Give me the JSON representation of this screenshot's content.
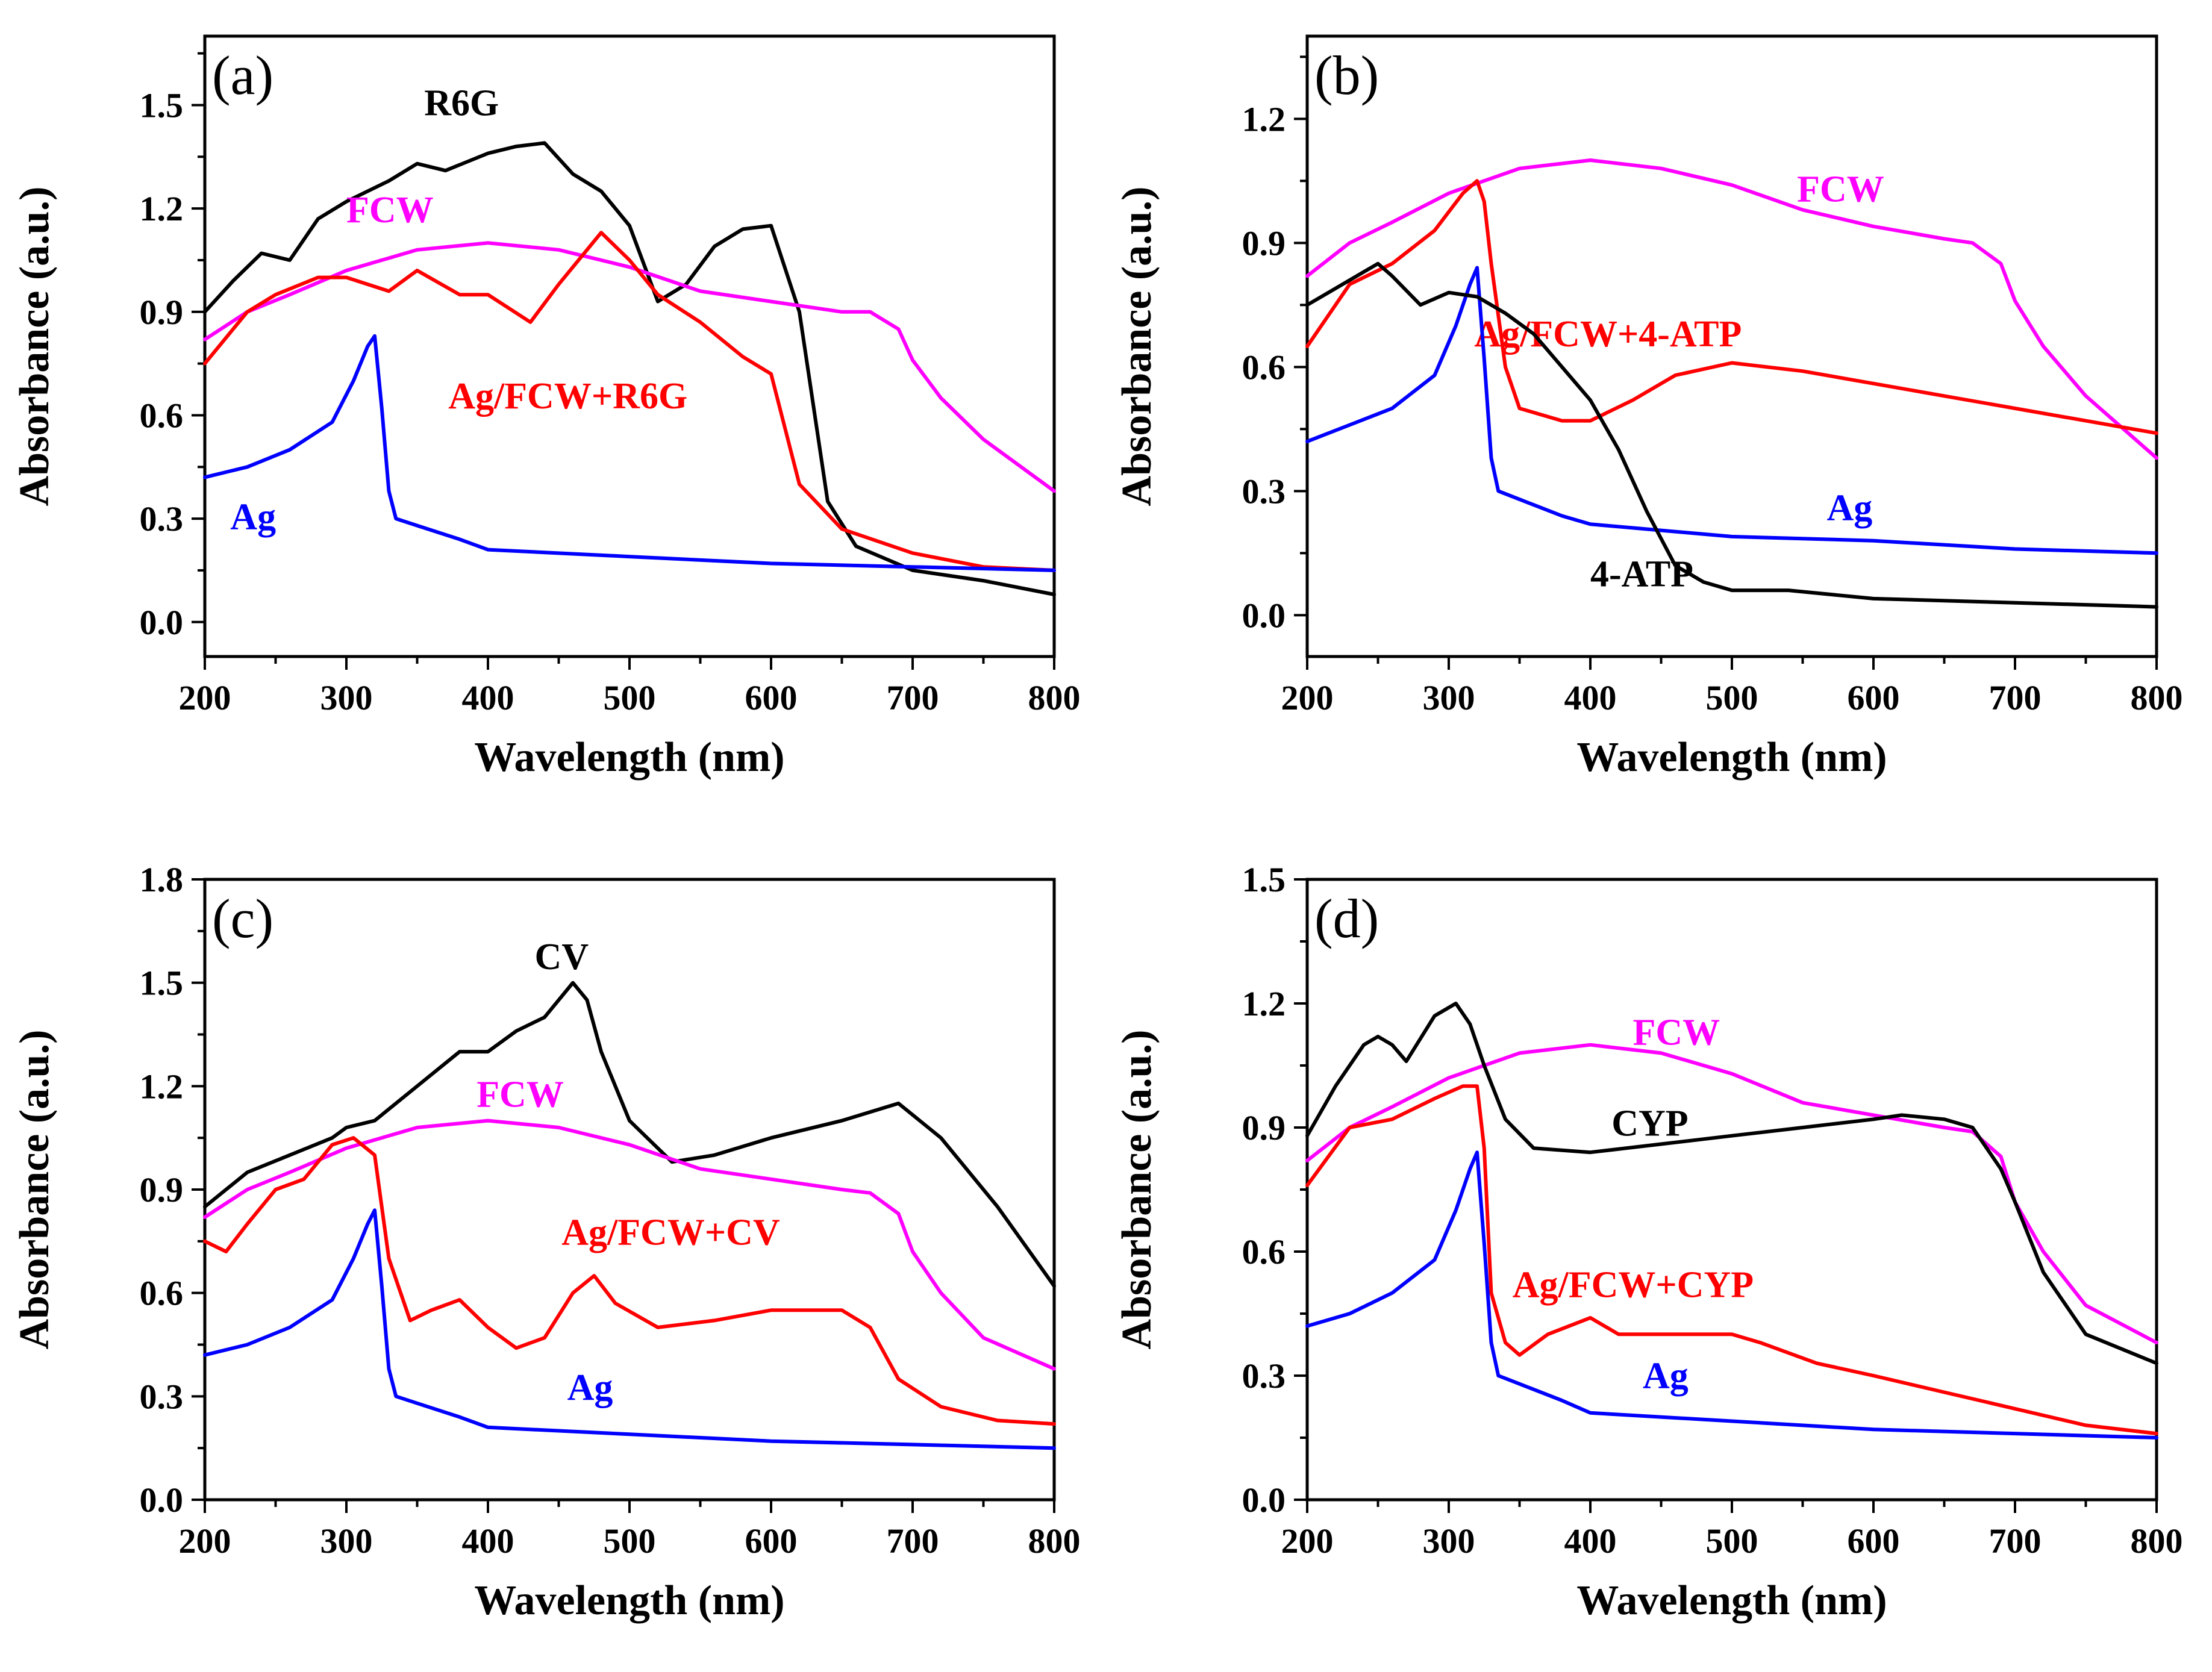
{
  "chart_data": [
    {
      "type": "line",
      "panel_label": "(a)",
      "xlabel": "Wavelength (nm)",
      "ylabel": "Absorbance (a.u.)",
      "xlim": [
        200,
        800
      ],
      "ylim": [
        -0.1,
        1.7
      ],
      "xticks": [
        200,
        300,
        400,
        500,
        600,
        700,
        800
      ],
      "xtick_labels": [
        "200",
        "300",
        "400",
        "500",
        "600",
        "700",
        "800"
      ],
      "yticks": [
        0.0,
        0.3,
        0.6,
        0.9,
        1.2,
        1.5
      ],
      "ytick_labels": [
        "0.0",
        "0.3",
        "0.6",
        "0.9",
        "1.2",
        "1.5"
      ],
      "series": [
        {
          "name": "R6G",
          "color": "#000000",
          "label_x": 355,
          "label_y": 1.47,
          "x": [
            200,
            220,
            240,
            260,
            280,
            300,
            330,
            350,
            370,
            400,
            420,
            440,
            460,
            480,
            500,
            520,
            540,
            560,
            580,
            600,
            620,
            640,
            660,
            700,
            750,
            800
          ],
          "y": [
            0.9,
            0.99,
            1.07,
            1.05,
            1.17,
            1.22,
            1.28,
            1.33,
            1.31,
            1.36,
            1.38,
            1.39,
            1.3,
            1.25,
            1.15,
            0.93,
            0.98,
            1.09,
            1.14,
            1.15,
            0.9,
            0.35,
            0.22,
            0.15,
            0.12,
            0.08
          ]
        },
        {
          "name": "FCW",
          "color": "#ff00ff",
          "label_x": 300,
          "label_y": 1.16,
          "x": [
            200,
            230,
            260,
            300,
            350,
            400,
            450,
            500,
            550,
            600,
            650,
            670,
            690,
            700,
            720,
            750,
            800
          ],
          "y": [
            0.82,
            0.9,
            0.95,
            1.02,
            1.08,
            1.1,
            1.08,
            1.03,
            0.96,
            0.93,
            0.9,
            0.9,
            0.85,
            0.76,
            0.65,
            0.53,
            0.38
          ]
        },
        {
          "name": "Ag/FCW+R6G",
          "color": "#ff0000",
          "label_x": 372,
          "label_y": 0.62,
          "x": [
            200,
            230,
            250,
            280,
            300,
            330,
            350,
            380,
            400,
            430,
            450,
            480,
            500,
            520,
            550,
            580,
            600,
            620,
            650,
            700,
            750,
            800
          ],
          "y": [
            0.75,
            0.9,
            0.95,
            1.0,
            1.0,
            0.96,
            1.02,
            0.95,
            0.95,
            0.87,
            0.98,
            1.13,
            1.05,
            0.95,
            0.87,
            0.77,
            0.72,
            0.4,
            0.27,
            0.2,
            0.16,
            0.15
          ]
        },
        {
          "name": "Ag",
          "color": "#0000ff",
          "label_x": 218,
          "label_y": 0.27,
          "x": [
            200,
            230,
            260,
            290,
            305,
            315,
            320,
            325,
            330,
            335,
            350,
            380,
            400,
            500,
            600,
            700,
            800
          ],
          "y": [
            0.42,
            0.45,
            0.5,
            0.58,
            0.7,
            0.8,
            0.83,
            0.62,
            0.38,
            0.3,
            0.28,
            0.24,
            0.21,
            0.19,
            0.17,
            0.16,
            0.15
          ]
        }
      ]
    },
    {
      "type": "line",
      "panel_label": "(b)",
      "xlabel": "Wavelength (nm)",
      "ylabel": "Absorbance (a.u.)",
      "xlim": [
        200,
        800
      ],
      "ylim": [
        -0.1,
        1.4
      ],
      "xticks": [
        200,
        300,
        400,
        500,
        600,
        700,
        800
      ],
      "xtick_labels": [
        "200",
        "300",
        "400",
        "500",
        "600",
        "700",
        "800"
      ],
      "yticks": [
        0.0,
        0.3,
        0.6,
        0.9,
        1.2
      ],
      "ytick_labels": [
        "0.0",
        "0.3",
        "0.6",
        "0.9",
        "1.2"
      ],
      "series": [
        {
          "name": "FCW",
          "color": "#ff00ff",
          "label_x": 546,
          "label_y": 1.0,
          "x": [
            200,
            230,
            260,
            300,
            350,
            400,
            450,
            500,
            550,
            600,
            650,
            670,
            690,
            700,
            720,
            750,
            800
          ],
          "y": [
            0.82,
            0.9,
            0.95,
            1.02,
            1.08,
            1.1,
            1.08,
            1.04,
            0.98,
            0.94,
            0.91,
            0.9,
            0.85,
            0.76,
            0.65,
            0.53,
            0.38
          ]
        },
        {
          "name": "Ag/FCW+4-ATP",
          "color": "#ff0000",
          "label_x": 318,
          "label_y": 0.65,
          "x": [
            200,
            230,
            260,
            290,
            310,
            320,
            325,
            330,
            340,
            350,
            380,
            400,
            430,
            460,
            500,
            550,
            600,
            650,
            700,
            750,
            800
          ],
          "y": [
            0.65,
            0.8,
            0.85,
            0.93,
            1.02,
            1.05,
            1.0,
            0.85,
            0.6,
            0.5,
            0.47,
            0.47,
            0.52,
            0.58,
            0.61,
            0.59,
            0.56,
            0.53,
            0.5,
            0.47,
            0.44
          ]
        },
        {
          "name": "Ag",
          "color": "#0000ff",
          "label_x": 567,
          "label_y": 0.23,
          "x": [
            200,
            230,
            260,
            290,
            305,
            315,
            320,
            325,
            330,
            335,
            350,
            380,
            400,
            500,
            600,
            700,
            800
          ],
          "y": [
            0.42,
            0.46,
            0.5,
            0.58,
            0.7,
            0.8,
            0.84,
            0.62,
            0.38,
            0.3,
            0.28,
            0.24,
            0.22,
            0.19,
            0.18,
            0.16,
            0.15
          ]
        },
        {
          "name": "4-ATP",
          "color": "#000000",
          "label_x": 400,
          "label_y": 0.07,
          "x": [
            200,
            220,
            240,
            250,
            260,
            280,
            300,
            320,
            340,
            360,
            380,
            400,
            420,
            440,
            460,
            480,
            500,
            540,
            600,
            700,
            800
          ],
          "y": [
            0.75,
            0.79,
            0.83,
            0.85,
            0.82,
            0.75,
            0.78,
            0.77,
            0.73,
            0.68,
            0.6,
            0.52,
            0.4,
            0.25,
            0.12,
            0.08,
            0.06,
            0.06,
            0.04,
            0.03,
            0.02
          ]
        }
      ]
    },
    {
      "type": "line",
      "panel_label": "(c)",
      "xlabel": "Wavelength (nm)",
      "ylabel": "Absorbance (a.u.)",
      "xlim": [
        200,
        800
      ],
      "ylim": [
        0.0,
        1.8
      ],
      "xticks": [
        200,
        300,
        400,
        500,
        600,
        700,
        800
      ],
      "xtick_labels": [
        "200",
        "300",
        "400",
        "500",
        "600",
        "700",
        "800"
      ],
      "yticks": [
        0.0,
        0.3,
        0.6,
        0.9,
        1.2,
        1.5,
        1.8
      ],
      "ytick_labels": [
        "0.0",
        "0.3",
        "0.6",
        "0.9",
        "1.2",
        "1.5",
        "1.8"
      ],
      "series": [
        {
          "name": "CV",
          "color": "#000000",
          "label_x": 433,
          "label_y": 1.54,
          "x": [
            200,
            230,
            260,
            290,
            300,
            320,
            350,
            380,
            400,
            420,
            440,
            460,
            470,
            480,
            500,
            530,
            560,
            600,
            650,
            690,
            720,
            760,
            800
          ],
          "y": [
            0.85,
            0.95,
            1.0,
            1.05,
            1.08,
            1.1,
            1.2,
            1.3,
            1.3,
            1.36,
            1.4,
            1.5,
            1.45,
            1.3,
            1.1,
            0.98,
            1.0,
            1.05,
            1.1,
            1.15,
            1.05,
            0.85,
            0.62
          ]
        },
        {
          "name": "FCW",
          "color": "#ff00ff",
          "label_x": 392,
          "label_y": 1.14,
          "x": [
            200,
            230,
            260,
            300,
            350,
            400,
            450,
            500,
            550,
            600,
            650,
            670,
            690,
            700,
            720,
            750,
            800
          ],
          "y": [
            0.82,
            0.9,
            0.95,
            1.02,
            1.08,
            1.1,
            1.08,
            1.03,
            0.96,
            0.93,
            0.9,
            0.89,
            0.83,
            0.72,
            0.6,
            0.47,
            0.38
          ]
        },
        {
          "name": "Ag/FCW+CV",
          "color": "#ff0000",
          "label_x": 452,
          "label_y": 0.74,
          "x": [
            200,
            215,
            230,
            250,
            270,
            290,
            305,
            320,
            330,
            345,
            360,
            380,
            400,
            420,
            440,
            460,
            475,
            490,
            520,
            560,
            600,
            650,
            670,
            690,
            720,
            760,
            800
          ],
          "y": [
            0.75,
            0.72,
            0.8,
            0.9,
            0.93,
            1.03,
            1.05,
            1.0,
            0.7,
            0.52,
            0.55,
            0.58,
            0.5,
            0.44,
            0.47,
            0.6,
            0.65,
            0.57,
            0.5,
            0.52,
            0.55,
            0.55,
            0.5,
            0.35,
            0.27,
            0.23,
            0.22
          ]
        },
        {
          "name": "Ag",
          "color": "#0000ff",
          "label_x": 456,
          "label_y": 0.29,
          "x": [
            200,
            230,
            260,
            290,
            305,
            315,
            320,
            325,
            330,
            335,
            350,
            380,
            400,
            500,
            600,
            700,
            800
          ],
          "y": [
            0.42,
            0.45,
            0.5,
            0.58,
            0.7,
            0.8,
            0.84,
            0.62,
            0.38,
            0.3,
            0.28,
            0.24,
            0.21,
            0.19,
            0.17,
            0.16,
            0.15
          ]
        }
      ]
    },
    {
      "type": "line",
      "panel_label": "(d)",
      "xlabel": "Wavelength (nm)",
      "ylabel": "Absorbance (a.u.)",
      "xlim": [
        200,
        800
      ],
      "ylim": [
        0.0,
        1.5
      ],
      "xticks": [
        200,
        300,
        400,
        500,
        600,
        700,
        800
      ],
      "xtick_labels": [
        "200",
        "300",
        "400",
        "500",
        "600",
        "700",
        "800"
      ],
      "yticks": [
        0.0,
        0.3,
        0.6,
        0.9,
        1.2,
        1.5
      ],
      "ytick_labels": [
        "0.0",
        "0.3",
        "0.6",
        "0.9",
        "1.2",
        "1.5"
      ],
      "series": [
        {
          "name": "FCW",
          "color": "#ff00ff",
          "label_x": 430,
          "label_y": 1.1,
          "x": [
            200,
            230,
            260,
            300,
            350,
            400,
            450,
            500,
            550,
            600,
            650,
            670,
            690,
            700,
            720,
            750,
            800
          ],
          "y": [
            0.82,
            0.9,
            0.95,
            1.02,
            1.08,
            1.1,
            1.08,
            1.03,
            0.96,
            0.93,
            0.9,
            0.89,
            0.83,
            0.72,
            0.6,
            0.47,
            0.38
          ]
        },
        {
          "name": "CYP",
          "color": "#000000",
          "label_x": 415,
          "label_y": 0.88,
          "x": [
            200,
            220,
            240,
            250,
            260,
            270,
            290,
            305,
            315,
            325,
            340,
            360,
            400,
            450,
            500,
            550,
            600,
            620,
            650,
            670,
            690,
            700,
            720,
            750,
            800
          ],
          "y": [
            0.88,
            1.0,
            1.1,
            1.12,
            1.1,
            1.06,
            1.17,
            1.2,
            1.15,
            1.05,
            0.92,
            0.85,
            0.84,
            0.86,
            0.88,
            0.9,
            0.92,
            0.93,
            0.92,
            0.9,
            0.8,
            0.72,
            0.55,
            0.4,
            0.33
          ]
        },
        {
          "name": "Ag/FCW+CYP",
          "color": "#ff0000",
          "label_x": 345,
          "label_y": 0.49,
          "x": [
            200,
            230,
            260,
            290,
            310,
            320,
            325,
            330,
            340,
            350,
            370,
            400,
            420,
            440,
            470,
            500,
            520,
            560,
            600,
            650,
            700,
            750,
            800
          ],
          "y": [
            0.76,
            0.9,
            0.92,
            0.97,
            1.0,
            1.0,
            0.85,
            0.5,
            0.38,
            0.35,
            0.4,
            0.44,
            0.4,
            0.4,
            0.4,
            0.4,
            0.38,
            0.33,
            0.3,
            0.26,
            0.22,
            0.18,
            0.16
          ]
        },
        {
          "name": "Ag",
          "color": "#0000ff",
          "label_x": 437,
          "label_y": 0.27,
          "x": [
            200,
            230,
            260,
            290,
            305,
            315,
            320,
            325,
            330,
            335,
            350,
            380,
            400,
            500,
            600,
            700,
            800
          ],
          "y": [
            0.42,
            0.45,
            0.5,
            0.58,
            0.7,
            0.8,
            0.84,
            0.62,
            0.38,
            0.3,
            0.28,
            0.24,
            0.21,
            0.19,
            0.17,
            0.16,
            0.15
          ]
        }
      ]
    }
  ]
}
